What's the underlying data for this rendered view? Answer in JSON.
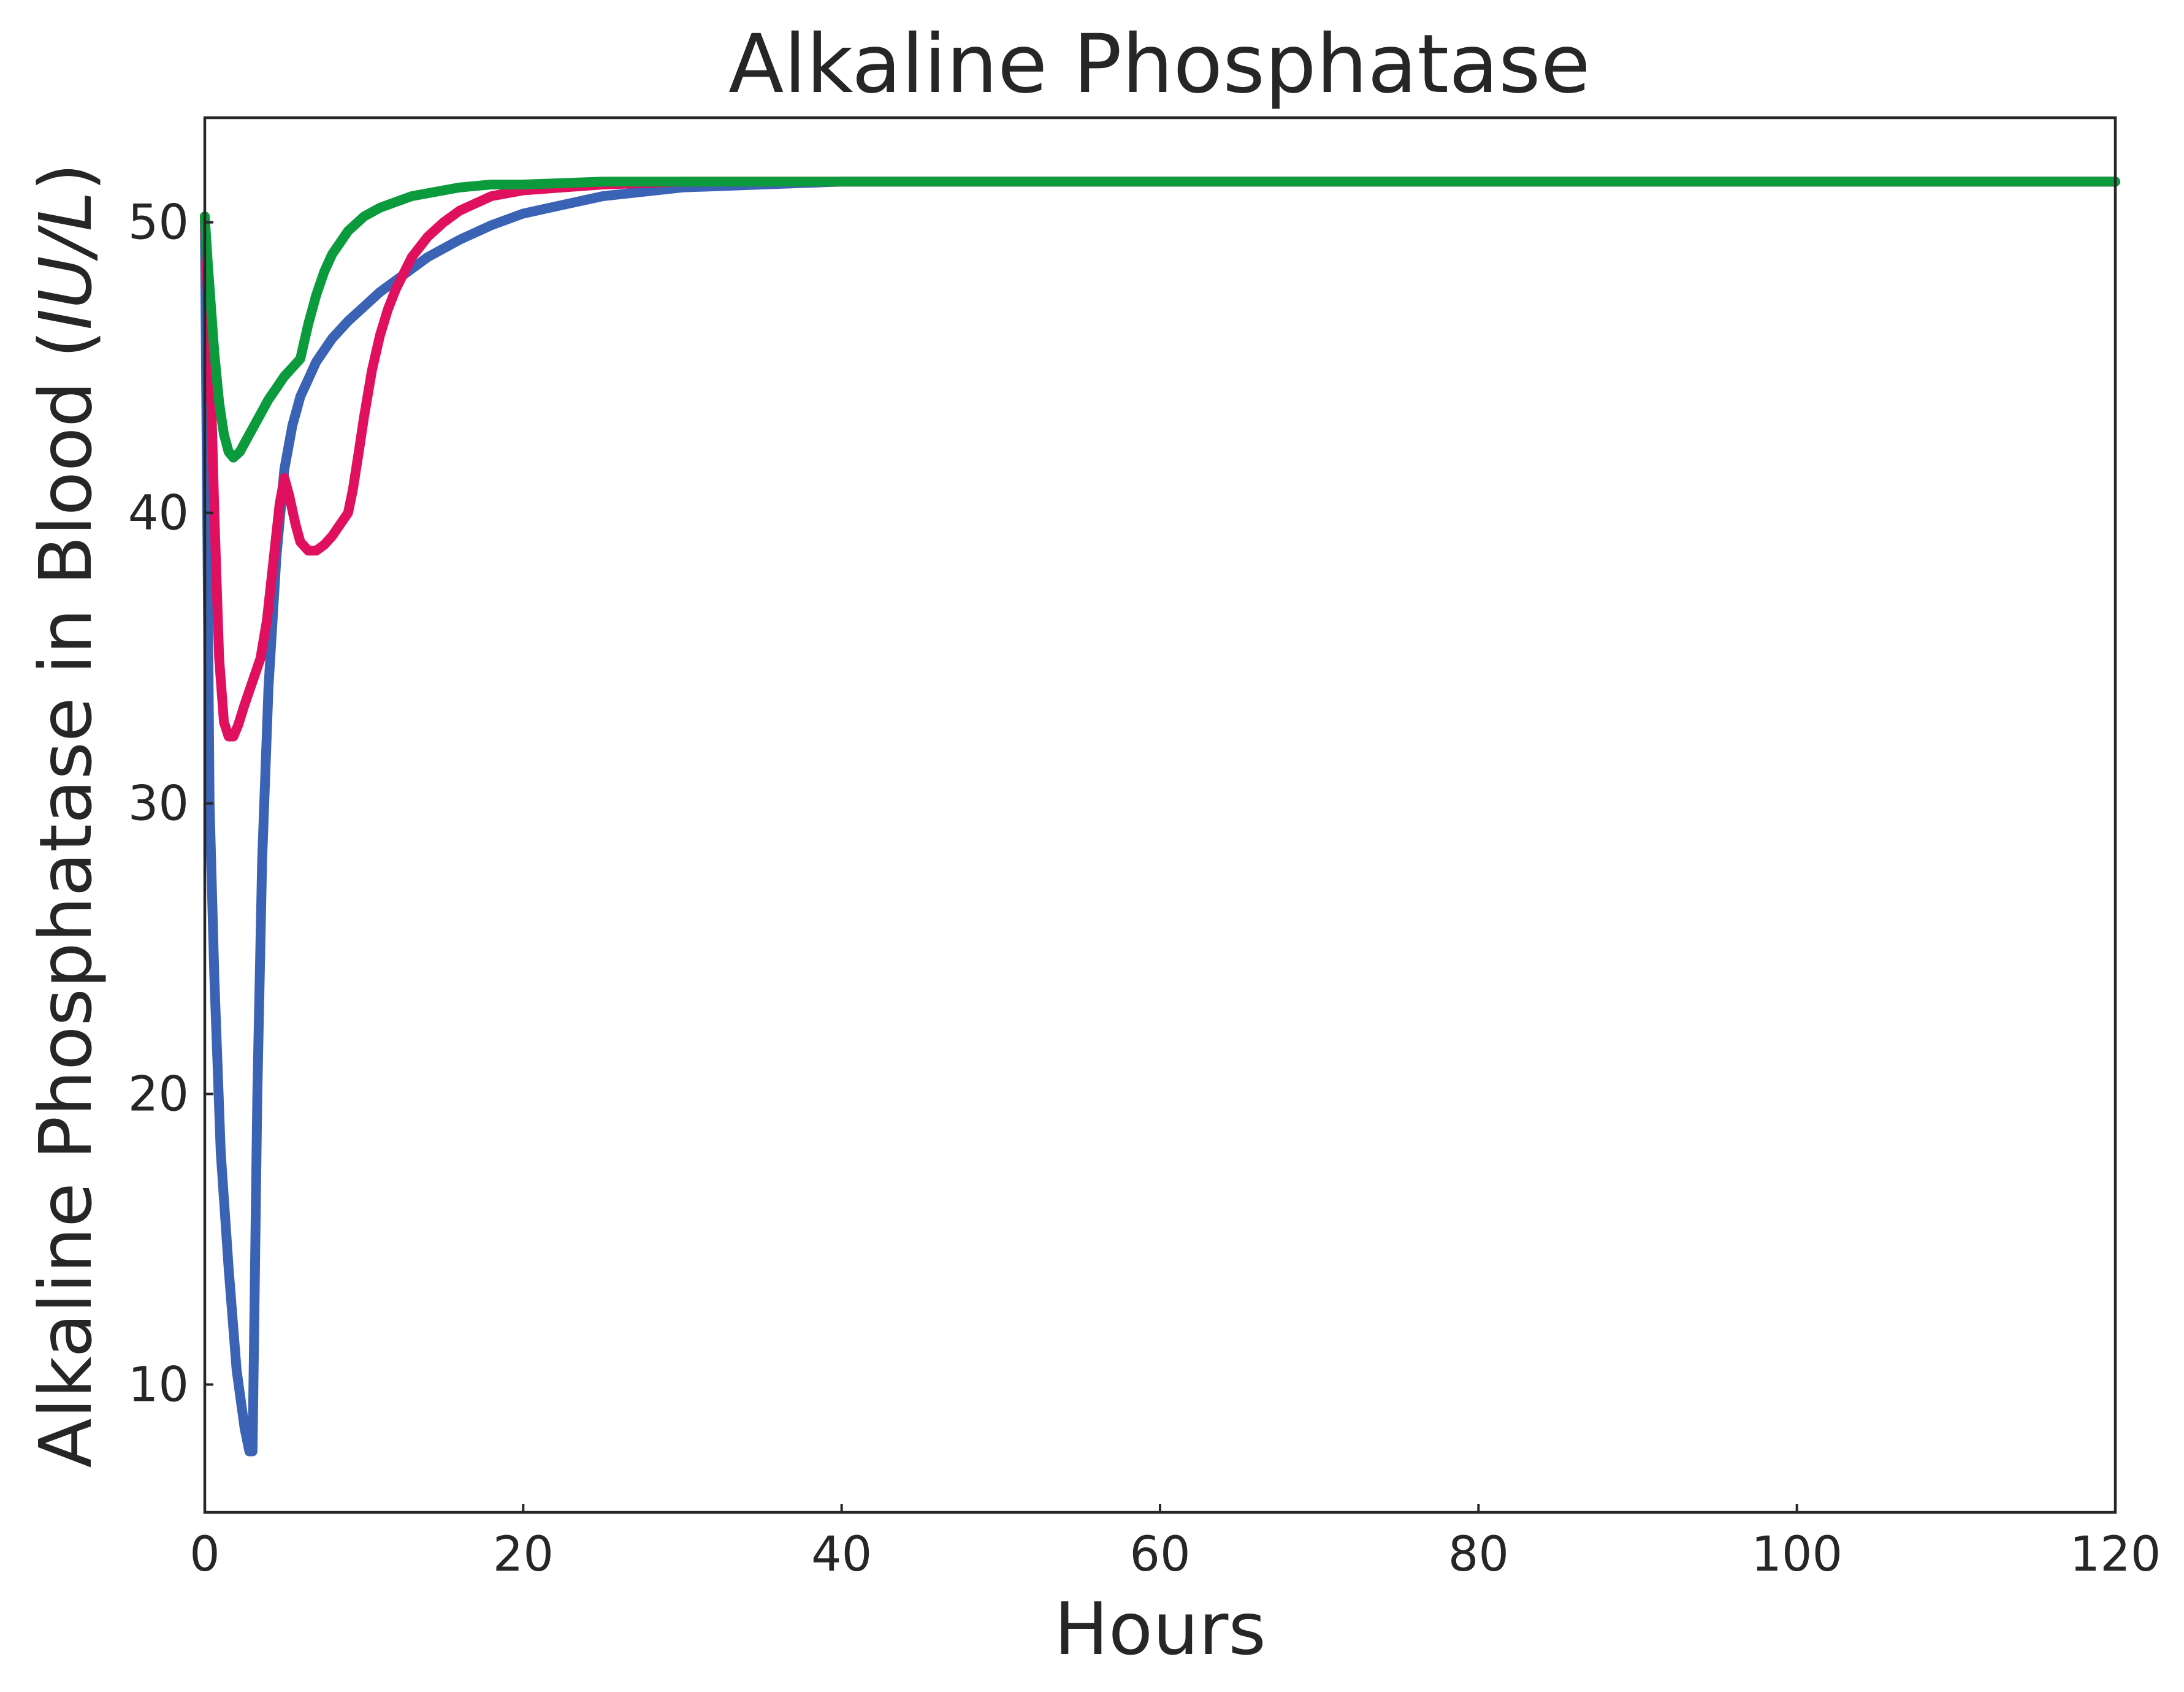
{
  "chart_data": {
    "type": "line",
    "title": "Alkaline Phosphatase",
    "xlabel": "Hours",
    "ylabel_main": "Alkaline Phosphatase in Blood (",
    "ylabel_unit": "IU/L",
    "ylabel_close": ")",
    "xlim": [
      0,
      120
    ],
    "ylim": [
      5.6,
      53.6
    ],
    "xticks": [
      0,
      20,
      40,
      60,
      80,
      100,
      120
    ],
    "yticks": [
      10,
      20,
      30,
      40,
      50
    ],
    "grid": false,
    "legend": "none",
    "series": [
      {
        "color": "#3A62B5",
        "x": [
          0,
          0.3,
          0.6,
          1.0,
          1.5,
          2.0,
          2.5,
          2.8,
          3.0,
          3.3,
          3.6,
          4.0,
          4.5,
          5.0,
          5.5,
          6.0,
          7.0,
          8.0,
          9.0,
          10.0,
          11.0,
          12.0,
          14.0,
          16.0,
          18.0,
          20.0,
          25.0,
          30.0,
          35.0,
          40.0,
          50.0,
          60.0,
          80.0,
          100.0,
          120.0
        ],
        "y": [
          50.2,
          30.0,
          24.0,
          18.0,
          14.0,
          10.5,
          8.5,
          7.7,
          7.7,
          20.0,
          28.0,
          34.0,
          38.5,
          41.5,
          43.0,
          44.0,
          45.2,
          46.0,
          46.6,
          47.1,
          47.6,
          48.0,
          48.8,
          49.4,
          49.9,
          50.3,
          50.9,
          51.2,
          51.3,
          51.4,
          51.4,
          51.4,
          51.4,
          51.4,
          51.4
        ]
      },
      {
        "color": "#E1105F",
        "x": [
          0,
          0.3,
          0.6,
          0.9,
          1.2,
          1.5,
          1.8,
          2.1,
          2.5,
          3.0,
          3.5,
          3.9,
          4.3,
          4.7,
          5.0,
          5.3,
          5.7,
          6.0,
          6.5,
          7.0,
          7.5,
          8.0,
          8.5,
          9.0,
          9.3,
          9.7,
          10.0,
          10.5,
          11.0,
          11.5,
          12.0,
          13.0,
          14.0,
          15.0,
          16.0,
          18.0,
          20.0,
          25.0,
          30.0,
          40.0,
          60.0,
          80.0,
          100.0,
          120.0
        ],
        "y": [
          50.2,
          46.0,
          40.0,
          35.0,
          32.8,
          32.3,
          32.3,
          32.7,
          33.4,
          34.2,
          35.0,
          36.3,
          38.3,
          40.3,
          41.2,
          40.6,
          39.6,
          39.0,
          38.7,
          38.7,
          38.9,
          39.2,
          39.6,
          40.0,
          40.8,
          42.2,
          43.3,
          44.9,
          46.1,
          47.0,
          47.7,
          48.8,
          49.5,
          50.0,
          50.4,
          50.9,
          51.1,
          51.3,
          51.4,
          51.4,
          51.4,
          51.4,
          51.4,
          51.4
        ]
      },
      {
        "color": "#0B9A3C",
        "x": [
          0,
          0.2,
          0.4,
          0.6,
          0.9,
          1.2,
          1.5,
          1.8,
          2.2,
          2.6,
          3.0,
          3.5,
          4.0,
          4.5,
          5.0,
          5.5,
          6.0,
          6.5,
          7.0,
          7.5,
          8.0,
          8.5,
          9.0,
          10.0,
          11.0,
          12.0,
          13.0,
          14.0,
          15.0,
          16.0,
          18.0,
          20.0,
          25.0,
          30.0,
          40.0,
          60.0,
          80.0,
          100.0,
          120.0
        ],
        "y": [
          50.2,
          48.5,
          47.0,
          45.5,
          43.8,
          42.7,
          42.1,
          41.9,
          42.1,
          42.5,
          42.9,
          43.4,
          43.9,
          44.3,
          44.7,
          45.0,
          45.3,
          46.5,
          47.5,
          48.3,
          48.9,
          49.3,
          49.7,
          50.2,
          50.5,
          50.7,
          50.9,
          51.0,
          51.1,
          51.2,
          51.3,
          51.3,
          51.4,
          51.4,
          51.4,
          51.4,
          51.4,
          51.4,
          51.4
        ]
      }
    ]
  }
}
